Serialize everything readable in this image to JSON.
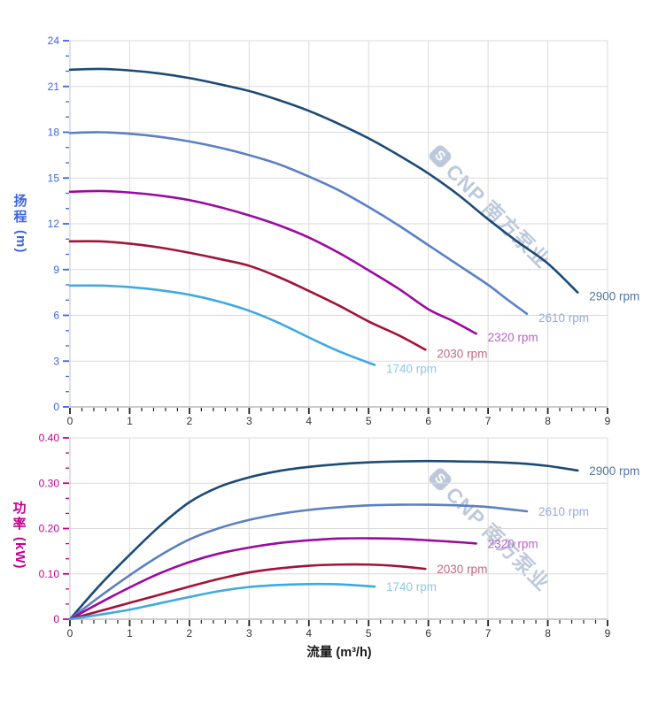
{
  "watermark": {
    "logo_letter": "S",
    "brand_text": "CNP 南方泵业"
  },
  "chart_data": [
    {
      "type": "line",
      "title": "",
      "xlabel": "",
      "ylabel": "扬程 (m)",
      "ylabel_chars": [
        "扬",
        "程"
      ],
      "ylabel_unit": "(m)",
      "axis_color": "#3d64de",
      "x_tick_color": "#333333",
      "grid": true,
      "legend_position": "right-of-curve-end",
      "xlim": [
        0,
        9
      ],
      "ylim": [
        0,
        24
      ],
      "x_tick_values": [
        0,
        1,
        2,
        3,
        4,
        5,
        6,
        7,
        8,
        9
      ],
      "x_tick_labels": [
        "0",
        "1",
        "2",
        "3",
        "4",
        "5",
        "6",
        "7",
        "8",
        "9"
      ],
      "x_minor_divisions": 5,
      "y_tick_values": [
        0,
        3,
        6,
        9,
        12,
        15,
        18,
        21,
        24
      ],
      "y_tick_labels": [
        "0",
        "3",
        "6",
        "9",
        "12",
        "15",
        "18",
        "21",
        "24"
      ],
      "y_minor_divisions": 3,
      "series": [
        {
          "name": "2900 rpm",
          "color": "#1b4b76",
          "label_color": "#52749e",
          "points": [
            [
              0,
              22.1
            ],
            [
              0.5,
              22.15
            ],
            [
              1,
              22.05
            ],
            [
              1.5,
              21.85
            ],
            [
              2,
              21.55
            ],
            [
              2.5,
              21.15
            ],
            [
              3,
              20.7
            ],
            [
              3.5,
              20.1
            ],
            [
              4,
              19.4
            ],
            [
              4.5,
              18.55
            ],
            [
              5,
              17.6
            ],
            [
              5.5,
              16.5
            ],
            [
              6,
              15.3
            ],
            [
              6.5,
              13.9
            ],
            [
              7,
              12.3
            ],
            [
              7.5,
              10.8
            ],
            [
              8,
              9.4
            ],
            [
              8.5,
              7.5
            ]
          ]
        },
        {
          "name": "2610 rpm",
          "color": "#5b80c3",
          "label_color": "#94aadc",
          "points": [
            [
              0,
              17.95
            ],
            [
              0.5,
              18.0
            ],
            [
              1,
              17.9
            ],
            [
              1.5,
              17.7
            ],
            [
              2,
              17.4
            ],
            [
              2.5,
              17.0
            ],
            [
              3,
              16.5
            ],
            [
              3.5,
              15.9
            ],
            [
              4,
              15.1
            ],
            [
              4.5,
              14.2
            ],
            [
              5,
              13.1
            ],
            [
              5.5,
              11.9
            ],
            [
              6,
              10.6
            ],
            [
              6.5,
              9.3
            ],
            [
              7,
              8.0
            ],
            [
              7.3,
              7.1
            ],
            [
              7.65,
              6.1
            ]
          ]
        },
        {
          "name": "2320 rpm",
          "color": "#9b0aa0",
          "label_color": "#b863c6",
          "points": [
            [
              0,
              14.1
            ],
            [
              0.5,
              14.15
            ],
            [
              1,
              14.05
            ],
            [
              1.5,
              13.85
            ],
            [
              2,
              13.55
            ],
            [
              2.5,
              13.1
            ],
            [
              3,
              12.55
            ],
            [
              3.5,
              11.9
            ],
            [
              4,
              11.1
            ],
            [
              4.5,
              10.1
            ],
            [
              5,
              8.95
            ],
            [
              5.5,
              7.75
            ],
            [
              6,
              6.4
            ],
            [
              6.4,
              5.65
            ],
            [
              6.8,
              4.8
            ]
          ]
        },
        {
          "name": "2030 rpm",
          "color": "#a31238",
          "label_color": "#c4687f",
          "points": [
            [
              0,
              10.85
            ],
            [
              0.5,
              10.85
            ],
            [
              1,
              10.7
            ],
            [
              1.5,
              10.45
            ],
            [
              2,
              10.1
            ],
            [
              2.5,
              9.7
            ],
            [
              3,
              9.25
            ],
            [
              3.5,
              8.5
            ],
            [
              4,
              7.6
            ],
            [
              4.5,
              6.65
            ],
            [
              5,
              5.6
            ],
            [
              5.5,
              4.7
            ],
            [
              5.95,
              3.75
            ]
          ]
        },
        {
          "name": "1740 rpm",
          "color": "#3fa9e1",
          "label_color": "#8cc7ee",
          "points": [
            [
              0,
              7.95
            ],
            [
              0.5,
              7.95
            ],
            [
              1,
              7.85
            ],
            [
              1.5,
              7.65
            ],
            [
              2,
              7.35
            ],
            [
              2.5,
              6.9
            ],
            [
              3,
              6.3
            ],
            [
              3.5,
              5.5
            ],
            [
              4,
              4.55
            ],
            [
              4.5,
              3.65
            ],
            [
              5.1,
              2.75
            ]
          ]
        }
      ]
    },
    {
      "type": "line",
      "title": "",
      "xlabel": "流量 (m³/h)",
      "ylabel": "功率 (kW)",
      "ylabel_chars": [
        "功",
        "率"
      ],
      "ylabel_unit": "(kW)",
      "axis_color": "#c2008f",
      "x_tick_color": "#333333",
      "grid": true,
      "legend_position": "right-of-curve-end",
      "xlim": [
        0,
        9
      ],
      "ylim": [
        0,
        0.4
      ],
      "x_tick_values": [
        0,
        1,
        2,
        3,
        4,
        5,
        6,
        7,
        8,
        9
      ],
      "x_tick_labels": [
        "0",
        "1",
        "2",
        "3",
        "4",
        "5",
        "6",
        "7",
        "8",
        "9"
      ],
      "x_minor_divisions": 5,
      "y_tick_values": [
        0,
        0.1,
        0.2,
        0.3,
        0.4
      ],
      "y_tick_labels": [
        "0",
        "0.10",
        "0.20",
        "0.30",
        "0.40"
      ],
      "y_minor_divisions": 3,
      "series": [
        {
          "name": "2900 rpm",
          "color": "#1b4b76",
          "label_color": "#52749e",
          "points": [
            [
              0,
              0
            ],
            [
              0.5,
              0.075
            ],
            [
              1,
              0.142
            ],
            [
              1.5,
              0.205
            ],
            [
              2,
              0.258
            ],
            [
              2.5,
              0.292
            ],
            [
              3,
              0.313
            ],
            [
              3.5,
              0.327
            ],
            [
              4,
              0.336
            ],
            [
              4.5,
              0.342
            ],
            [
              5,
              0.346
            ],
            [
              5.5,
              0.348
            ],
            [
              6,
              0.349
            ],
            [
              6.5,
              0.348
            ],
            [
              7,
              0.347
            ],
            [
              7.5,
              0.344
            ],
            [
              8,
              0.338
            ],
            [
              8.5,
              0.328
            ]
          ]
        },
        {
          "name": "2610 rpm",
          "color": "#5b80c3",
          "label_color": "#94aadc",
          "points": [
            [
              0,
              0
            ],
            [
              0.5,
              0.05
            ],
            [
              1,
              0.097
            ],
            [
              1.5,
              0.14
            ],
            [
              2,
              0.176
            ],
            [
              2.5,
              0.201
            ],
            [
              3,
              0.219
            ],
            [
              3.5,
              0.232
            ],
            [
              4,
              0.241
            ],
            [
              4.5,
              0.247
            ],
            [
              5,
              0.251
            ],
            [
              5.5,
              0.2525
            ],
            [
              6,
              0.2525
            ],
            [
              6.5,
              0.251
            ],
            [
              7,
              0.2475
            ],
            [
              7.65,
              0.238
            ]
          ]
        },
        {
          "name": "2320 rpm",
          "color": "#9b0aa0",
          "label_color": "#b863c6",
          "points": [
            [
              0,
              0
            ],
            [
              0.5,
              0.036
            ],
            [
              1,
              0.07
            ],
            [
              1.5,
              0.101
            ],
            [
              2,
              0.126
            ],
            [
              2.5,
              0.145
            ],
            [
              3,
              0.158
            ],
            [
              3.5,
              0.168
            ],
            [
              4,
              0.174
            ],
            [
              4.5,
              0.178
            ],
            [
              5,
              0.1785
            ],
            [
              5.5,
              0.1775
            ],
            [
              6,
              0.174
            ],
            [
              6.5,
              0.17
            ],
            [
              6.8,
              0.167
            ]
          ]
        },
        {
          "name": "2030 rpm",
          "color": "#a31238",
          "label_color": "#c4687f",
          "points": [
            [
              0,
              0
            ],
            [
              0.5,
              0.018
            ],
            [
              1,
              0.036
            ],
            [
              1.5,
              0.054
            ],
            [
              2,
              0.072
            ],
            [
              2.5,
              0.089
            ],
            [
              3,
              0.103
            ],
            [
              3.5,
              0.112
            ],
            [
              4,
              0.118
            ],
            [
              4.5,
              0.1205
            ],
            [
              5,
              0.1205
            ],
            [
              5.5,
              0.117
            ],
            [
              5.95,
              0.111
            ]
          ]
        },
        {
          "name": "1740 rpm",
          "color": "#3fa9e1",
          "label_color": "#8cc7ee",
          "points": [
            [
              0,
              0
            ],
            [
              0.5,
              0.01
            ],
            [
              1,
              0.021
            ],
            [
              1.5,
              0.035
            ],
            [
              2,
              0.049
            ],
            [
              2.5,
              0.062
            ],
            [
              3,
              0.071
            ],
            [
              3.5,
              0.0755
            ],
            [
              4,
              0.0775
            ],
            [
              4.5,
              0.077
            ],
            [
              5.1,
              0.072
            ]
          ]
        }
      ]
    }
  ]
}
